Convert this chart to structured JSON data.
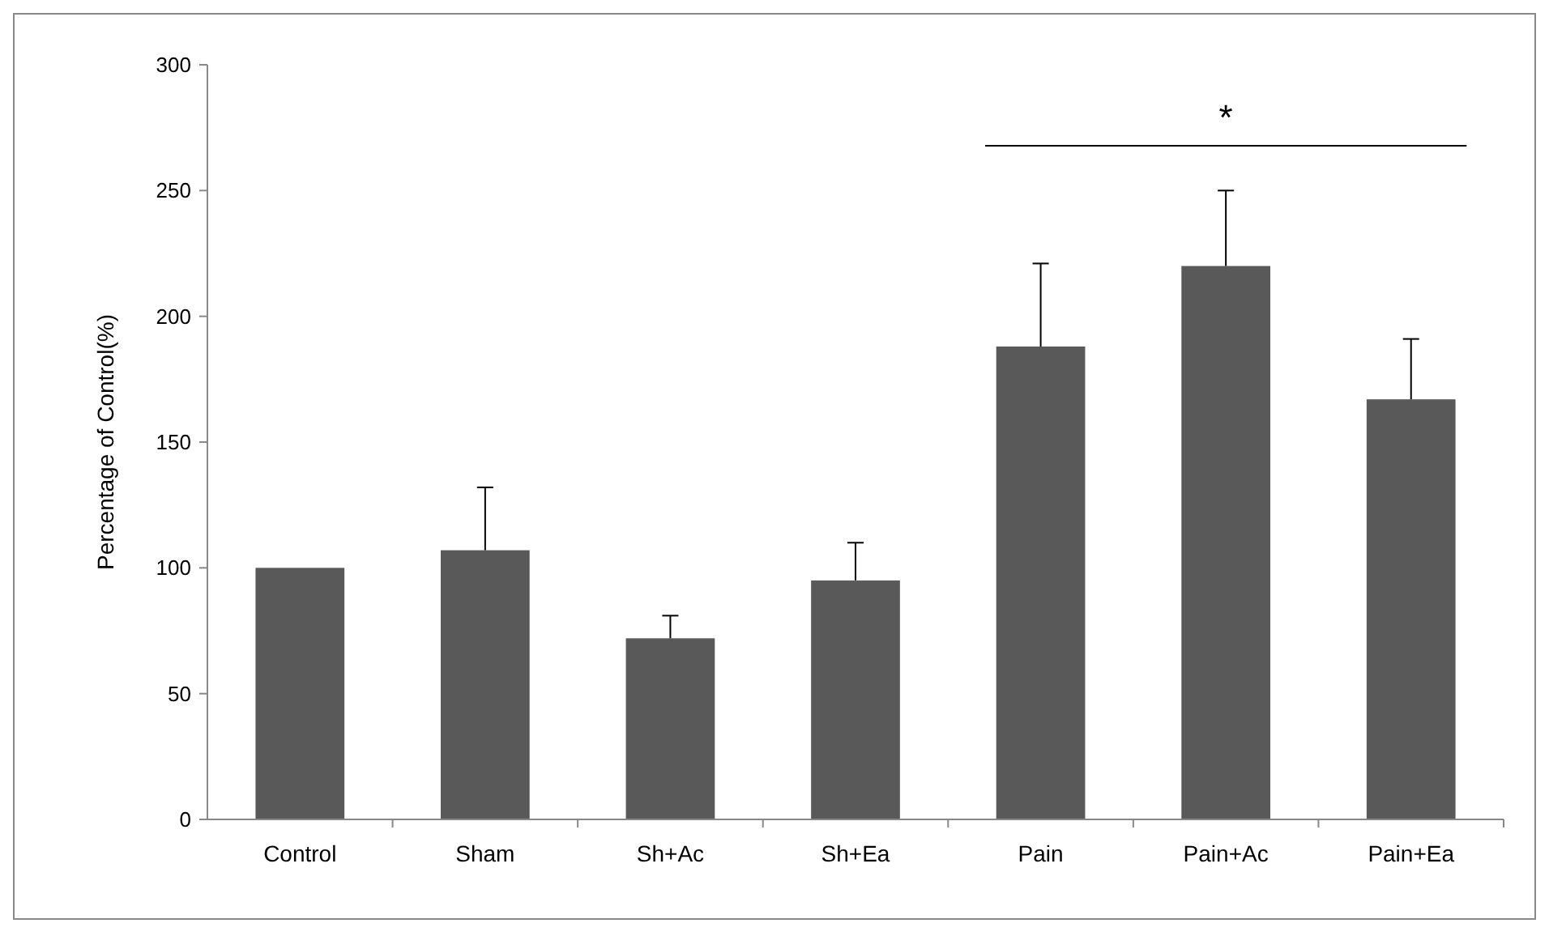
{
  "chart_data": {
    "type": "bar",
    "ylabel": "Percentage of Control(%)",
    "categories": [
      "Control",
      "Sham",
      "Sh+Ac",
      "Sh+Ea",
      "Pain",
      "Pain+Ac",
      "Pain+Ea"
    ],
    "values": [
      100,
      107,
      72,
      95,
      188,
      220,
      167
    ],
    "errors": [
      null,
      [
        107,
        132
      ],
      [
        72,
        81
      ],
      [
        95,
        110
      ],
      [
        188,
        221
      ],
      [
        220,
        250
      ],
      [
        167,
        191
      ]
    ],
    "color": "#595959",
    "ylim": [
      0,
      300
    ],
    "yticks": [
      0,
      50,
      100,
      150,
      200,
      250,
      300
    ],
    "grid": false,
    "annotations": [
      "*"
    ]
  }
}
